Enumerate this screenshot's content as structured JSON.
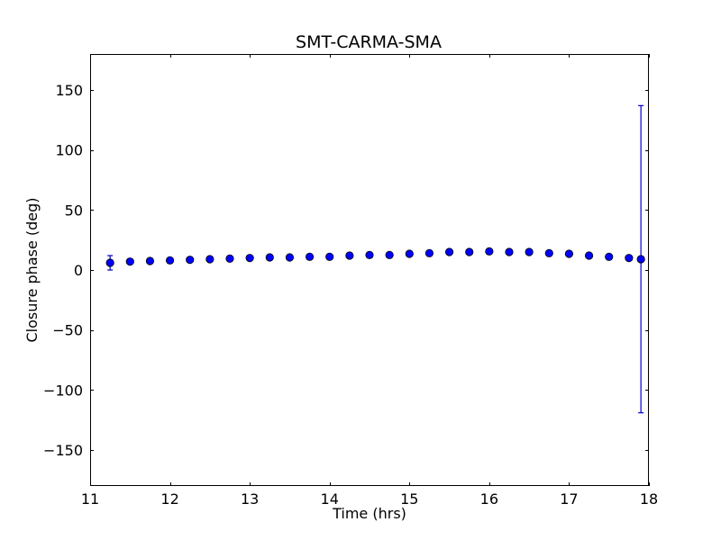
{
  "chart_data": {
    "type": "scatter",
    "title": "SMT-CARMA-SMA",
    "xlabel": "Time (hrs)",
    "ylabel": "Closure phase (deg)",
    "xlim": [
      11,
      18
    ],
    "ylim": [
      -180,
      180
    ],
    "xticks": [
      11,
      12,
      13,
      14,
      15,
      16,
      17,
      18
    ],
    "xtick_labels": [
      "11",
      "12",
      "13",
      "14",
      "15",
      "16",
      "17",
      "18"
    ],
    "yticks": [
      150,
      100,
      50,
      0,
      -50,
      -100,
      -150
    ],
    "ytick_labels": [
      "150",
      "100",
      "50",
      "0",
      "−50",
      "−100",
      "−150"
    ],
    "grid": false,
    "marker_color": "#0000ff",
    "errorbar_color": "#0000cc",
    "points": [
      {
        "x": 11.25,
        "y": 6,
        "yerr": 6
      },
      {
        "x": 11.5,
        "y": 7,
        "yerr": 0
      },
      {
        "x": 11.75,
        "y": 7.5,
        "yerr": 0
      },
      {
        "x": 12.0,
        "y": 8,
        "yerr": 0
      },
      {
        "x": 12.25,
        "y": 8.5,
        "yerr": 0
      },
      {
        "x": 12.5,
        "y": 9,
        "yerr": 0
      },
      {
        "x": 12.75,
        "y": 9.5,
        "yerr": 0
      },
      {
        "x": 13.0,
        "y": 10,
        "yerr": 0
      },
      {
        "x": 13.25,
        "y": 10.5,
        "yerr": 0
      },
      {
        "x": 13.5,
        "y": 10.5,
        "yerr": 0
      },
      {
        "x": 13.75,
        "y": 11,
        "yerr": 0
      },
      {
        "x": 14.0,
        "y": 11,
        "yerr": 0
      },
      {
        "x": 14.25,
        "y": 12,
        "yerr": 0
      },
      {
        "x": 14.5,
        "y": 12.5,
        "yerr": 0
      },
      {
        "x": 14.75,
        "y": 12.5,
        "yerr": 0
      },
      {
        "x": 15.0,
        "y": 13.5,
        "yerr": 0
      },
      {
        "x": 15.25,
        "y": 14,
        "yerr": 0
      },
      {
        "x": 15.5,
        "y": 15,
        "yerr": 0
      },
      {
        "x": 15.75,
        "y": 15,
        "yerr": 0
      },
      {
        "x": 16.0,
        "y": 15.5,
        "yerr": 0
      },
      {
        "x": 16.25,
        "y": 15,
        "yerr": 0
      },
      {
        "x": 16.5,
        "y": 15,
        "yerr": 0
      },
      {
        "x": 16.75,
        "y": 14,
        "yerr": 0
      },
      {
        "x": 17.0,
        "y": 13.5,
        "yerr": 0
      },
      {
        "x": 17.25,
        "y": 12,
        "yerr": 0
      },
      {
        "x": 17.5,
        "y": 11,
        "yerr": 0
      },
      {
        "x": 17.75,
        "y": 10,
        "yerr": 0
      },
      {
        "x": 17.9,
        "y": 9,
        "yerr_upper": 128,
        "yerr_lower": 128
      }
    ]
  }
}
